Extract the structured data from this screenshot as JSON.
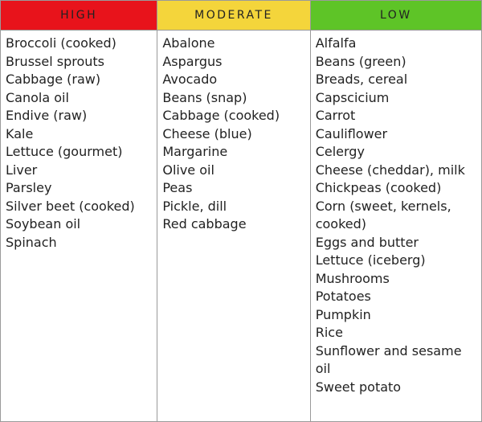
{
  "table": {
    "columns": [
      {
        "header": "HIGH",
        "color": "#e8131b",
        "items": [
          "Broccoli (cooked)",
          "Brussel sprouts",
          "Cabbage (raw)",
          "Canola oil",
          "Endive (raw)",
          "Kale",
          "Lettuce (gourmet)",
          "Liver",
          "Parsley",
          "Silver beet (cooked)",
          "Soybean oil",
          "Spinach"
        ]
      },
      {
        "header": "MODERATE",
        "color": "#f4d53b",
        "items": [
          "Abalone",
          "Aspargus",
          "Avocado",
          "Beans (snap)",
          "Cabbage (cooked)",
          "Cheese (blue)",
          "Margarine",
          "Olive oil",
          "Peas",
          "Pickle, dill",
          "Red cabbage"
        ]
      },
      {
        "header": "LOW",
        "color": "#5ec427",
        "items": [
          "Alfalfa",
          "Beans (green)",
          "Breads, cereal",
          "Capscicium",
          "Carrot",
          "Cauliflower",
          "Celergy",
          "Cheese (cheddar), milk",
          "Chickpeas (cooked)",
          "Corn (sweet, kernels, cooked)",
          "Eggs and butter",
          "Lettuce (iceberg)",
          "Mushrooms",
          "Potatoes",
          "Pumpkin",
          "Rice",
          "Sunflower and sesame oil",
          "Sweet potato"
        ]
      }
    ]
  }
}
